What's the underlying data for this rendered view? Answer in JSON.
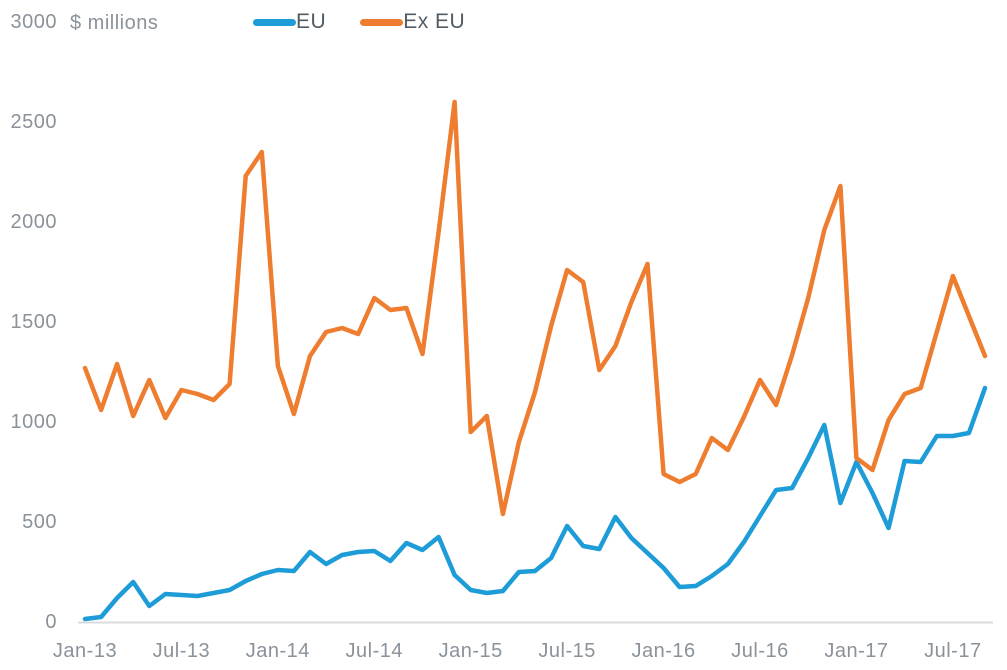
{
  "chart_data": {
    "type": "line",
    "title": "",
    "ylabel": "$ millions",
    "xlabel": "",
    "ylim": [
      0,
      3000
    ],
    "grid": false,
    "legend_position": "top",
    "x_start": "Jan-13",
    "x_end": "Sep-17",
    "x_interval": "monthly",
    "y_ticks": [
      0,
      500,
      1000,
      1500,
      2000,
      2500,
      3000
    ],
    "x_ticks": [
      {
        "label": "Jan-13",
        "month": 0
      },
      {
        "label": "Jul-13",
        "month": 6
      },
      {
        "label": "Jan-14",
        "month": 12
      },
      {
        "label": "Jul-14",
        "month": 18
      },
      {
        "label": "Jan-15",
        "month": 24
      },
      {
        "label": "Jul-15",
        "month": 30
      },
      {
        "label": "Jan-16",
        "month": 36
      },
      {
        "label": "Jul-16",
        "month": 42
      },
      {
        "label": "Jan-17",
        "month": 48
      },
      {
        "label": "Jul-17",
        "month": 54
      }
    ],
    "legend": [
      {
        "label": "EU",
        "color": "#1e9cd7"
      },
      {
        "label": "Ex EU",
        "color": "#ee7d30"
      }
    ],
    "series": [
      {
        "name": "EU",
        "color": "#1e9cd7",
        "values": [
          15,
          25,
          120,
          200,
          80,
          140,
          135,
          130,
          145,
          160,
          205,
          240,
          260,
          255,
          350,
          290,
          335,
          350,
          355,
          305,
          395,
          360,
          425,
          235,
          160,
          145,
          155,
          250,
          255,
          320,
          480,
          380,
          365,
          525,
          420,
          345,
          270,
          175,
          180,
          230,
          290,
          400,
          530,
          660,
          670,
          820,
          985,
          595,
          800,
          645,
          470,
          805,
          800,
          930,
          930,
          945,
          1170
        ]
      },
      {
        "name": "Ex EU",
        "color": "#ee7d30",
        "values": [
          1270,
          1060,
          1290,
          1030,
          1210,
          1020,
          1160,
          1140,
          1110,
          1190,
          2230,
          2350,
          1280,
          1040,
          1330,
          1450,
          1470,
          1440,
          1620,
          1560,
          1570,
          1340,
          1950,
          2600,
          950,
          1030,
          540,
          900,
          1150,
          1480,
          1760,
          1700,
          1260,
          1380,
          1600,
          1790,
          740,
          700,
          740,
          920,
          860,
          1025,
          1210,
          1085,
          1335,
          1620,
          1960,
          2180,
          820,
          760,
          1010,
          1140,
          1170,
          1450,
          1730,
          1530,
          1330
        ]
      }
    ],
    "axis_line_color": "#d9dcde",
    "tick_label_color": "#8a929a"
  }
}
